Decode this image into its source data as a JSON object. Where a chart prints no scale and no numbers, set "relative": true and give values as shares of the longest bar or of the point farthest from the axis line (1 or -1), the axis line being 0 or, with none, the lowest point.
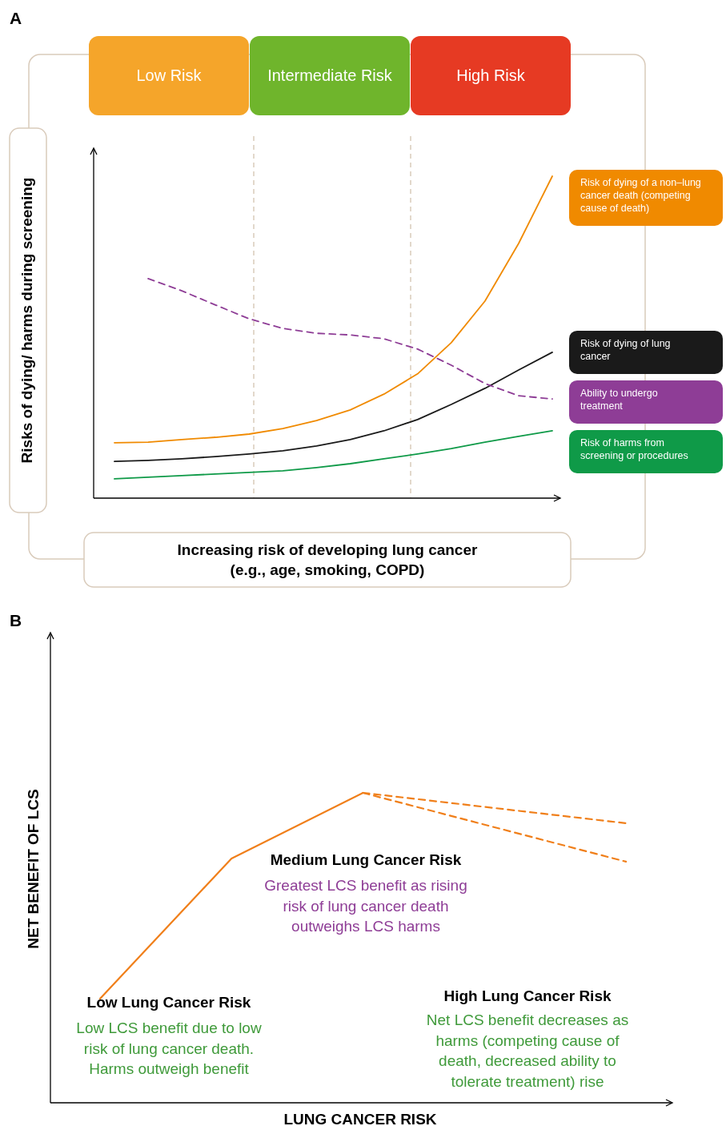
{
  "chart_data": [
    {
      "type": "line",
      "title": "A",
      "relative": true,
      "legend": "right",
      "xlabel": "Increasing risk of developing lung cancer (e.g., age, smoking, COPD)",
      "ylabel": "Risks of dying/ harms during screening",
      "categories": [
        null,
        null,
        null,
        null,
        null,
        null,
        null,
        null,
        null,
        null,
        null,
        null,
        null,
        null
      ],
      "series": [
        {
          "name": "Risk of dying of a non–lung cancer death (competing cause of death)",
          "color": "#f08a00",
          "values": [
            0.172,
            0.174,
            0.182,
            0.189,
            0.199,
            0.216,
            0.241,
            0.274,
            0.323,
            0.386,
            0.483,
            0.612,
            0.791,
            1.0
          ]
        },
        {
          "name": "Risk of dying of lung cancer",
          "color": "#1a1a1a",
          "values": [
            0.114,
            0.117,
            0.122,
            0.129,
            0.137,
            0.147,
            0.162,
            0.182,
            0.209,
            0.244,
            0.291,
            0.341,
            0.398,
            0.453
          ]
        },
        {
          "name": "Ability to undergo treatment",
          "color": "#8e3d96",
          "line_style": "dashed",
          "values": [
            null,
            0.682,
            0.644,
            0.6,
            0.557,
            0.527,
            0.512,
            0.507,
            0.495,
            0.463,
            0.413,
            0.356,
            0.318,
            0.308
          ]
        },
        {
          "name": "Risk of harms from screening or procedures",
          "color": "#0f9a48",
          "values": [
            0.06,
            0.065,
            0.07,
            0.075,
            0.08,
            0.085,
            0.095,
            0.107,
            0.122,
            0.137,
            0.154,
            0.174,
            0.192,
            0.209
          ]
        }
      ],
      "annotations": [
        "Low Risk",
        "Intermediate Risk",
        "High Risk"
      ]
    },
    {
      "type": "line",
      "title": "B",
      "relative": true,
      "xlabel": "LUNG CANCER RISK",
      "ylabel": "NET BENEFIT OF LCS",
      "categories": [
        null,
        null,
        null,
        null,
        null
      ],
      "series": [
        {
          "color": "#f07f1a",
          "values": [
            0.336,
            0.788,
            1.0,
            null,
            null
          ]
        },
        {
          "color": "#f07f1a",
          "line_style": "dashed",
          "values": [
            null,
            null,
            1.0,
            0.951,
            0.902
          ]
        },
        {
          "color": "#f07f1a",
          "line_style": "dashed",
          "values": [
            null,
            null,
            1.0,
            0.889,
            0.778
          ]
        }
      ],
      "annotations": [
        "Low Lung Cancer Risk",
        "Low LCS benefit due to low risk of lung cancer death. Harms outweigh benefit",
        "Medium Lung Cancer Risk",
        "Greatest LCS benefit as rising risk of lung cancer death outweighs LCS harms",
        "High Lung Cancer Risk",
        "Net LCS benefit decreases as harms (competing cause of death, decreased ability to tolerate treatment) rise"
      ]
    }
  ]
}
